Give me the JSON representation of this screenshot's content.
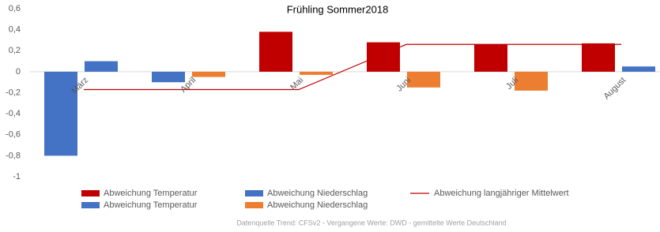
{
  "chart_data": {
    "type": "bar",
    "title": "Frühling Sommer2018",
    "categories": [
      "März",
      "April",
      "Mai",
      "Juni",
      "Juli",
      "August"
    ],
    "series": [
      {
        "name": "Abweichung Temperatur",
        "color": "#c00000",
        "values": [
          null,
          null,
          0.38,
          0.28,
          0.26,
          0.27
        ]
      },
      {
        "name": "Abweichung Niederschlag",
        "color": "#4472c4",
        "values": [
          0.1,
          null,
          null,
          null,
          null,
          0.05
        ]
      },
      {
        "name": "Abweichung langjähriger Mittelwert",
        "type": "line",
        "color": "#c00000",
        "values": [
          -0.17,
          -0.17,
          -0.17,
          0.26,
          0.26,
          0.26
        ]
      },
      {
        "name": "Abweichung Temperatur",
        "color": "#4472c4",
        "values": [
          -0.8,
          -0.1,
          null,
          null,
          null,
          null
        ]
      },
      {
        "name": "Abweichung Niederschlag",
        "color": "#ed7d31",
        "values": [
          null,
          -0.05,
          -0.03,
          -0.15,
          -0.18,
          null
        ]
      }
    ],
    "ylim": [
      -1,
      0.6
    ],
    "yticks": [
      {
        "value": 0.6,
        "label": "0,6"
      },
      {
        "value": 0.4,
        "label": "0,4"
      },
      {
        "value": 0.2,
        "label": "0,2"
      },
      0,
      {
        "value": -0.2,
        "label": "-0,2"
      },
      {
        "value": -0.4,
        "label": "-0,4"
      },
      {
        "value": -0.6,
        "label": "-0,6"
      },
      {
        "value": -0.8,
        "label": "-0,8"
      },
      -1
    ],
    "grid": false,
    "legend": "bottom",
    "source": "Datenquelle Trend: CFSv2 - Vergangene Werte: DWD - gemittelte Werte Deutschland"
  }
}
